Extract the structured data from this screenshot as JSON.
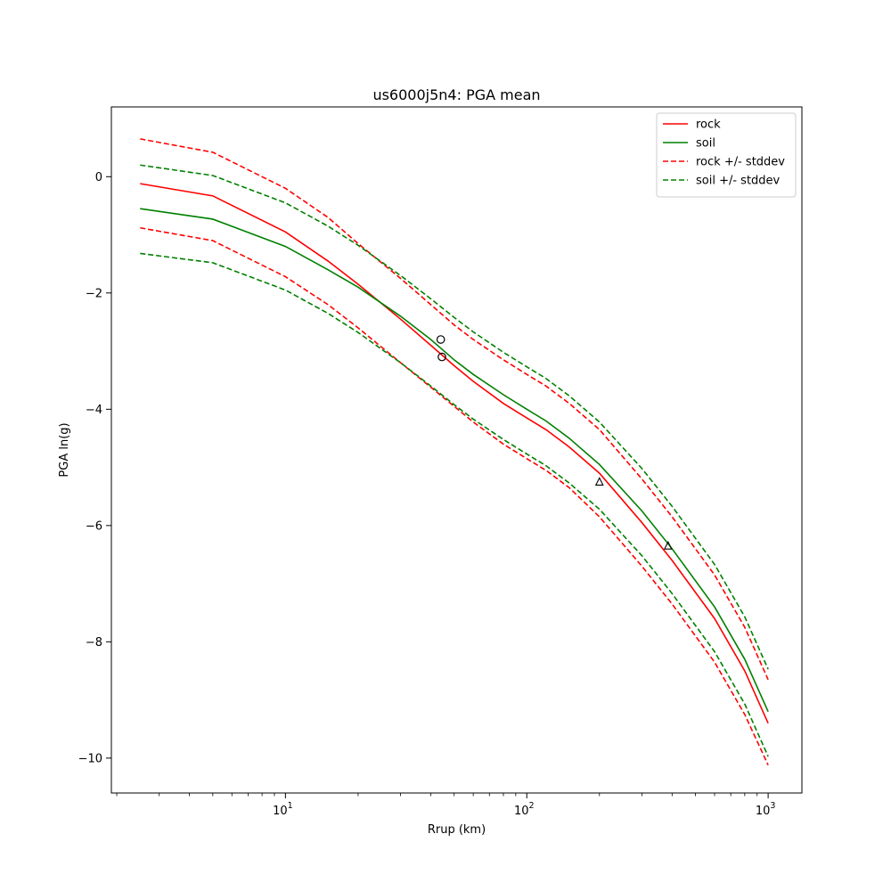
{
  "chart_data": {
    "type": "line",
    "title": "us6000j5n4: PGA mean",
    "xlabel": "Rrup (km)",
    "ylabel": "PGA ln(g)",
    "xscale": "log",
    "xlim": [
      1.9,
      1380
    ],
    "ylim": [
      -10.6,
      1.2
    ],
    "grid": false,
    "legend_position": "top-right",
    "x_ticks": [
      {
        "base": "10",
        "exp": "1",
        "value": 10
      },
      {
        "base": "10",
        "exp": "2",
        "value": 100
      },
      {
        "base": "10",
        "exp": "3",
        "value": 1000
      }
    ],
    "y_ticks": [
      {
        "label": "0",
        "value": 0
      },
      {
        "label": "−2",
        "value": -2
      },
      {
        "label": "−4",
        "value": -4
      },
      {
        "label": "−6",
        "value": -6
      },
      {
        "label": "−8",
        "value": -8
      },
      {
        "label": "−10",
        "value": -10
      }
    ],
    "x": [
      2.5,
      5,
      10,
      15,
      20,
      30,
      40,
      50,
      60,
      80,
      100,
      120,
      150,
      200,
      300,
      400,
      600,
      800,
      1000
    ],
    "series": [
      {
        "name": "rock",
        "color": "#ff0000",
        "style": "solid",
        "values": [
          -0.12,
          -0.33,
          -0.95,
          -1.45,
          -1.85,
          -2.45,
          -2.9,
          -3.25,
          -3.52,
          -3.9,
          -4.15,
          -4.35,
          -4.65,
          -5.1,
          -5.95,
          -6.6,
          -7.6,
          -8.5,
          -9.4
        ]
      },
      {
        "name": "soil",
        "color": "#008000",
        "style": "solid",
        "values": [
          -0.55,
          -0.73,
          -1.2,
          -1.6,
          -1.9,
          -2.4,
          -2.8,
          -3.15,
          -3.4,
          -3.75,
          -4.0,
          -4.2,
          -4.5,
          -4.95,
          -5.75,
          -6.4,
          -7.4,
          -8.3,
          -9.2
        ]
      },
      {
        "name": "rock +/- stddev",
        "color": "#ff0000",
        "style": "dashed",
        "values": [
          0.65,
          0.42,
          -0.2,
          -0.7,
          -1.15,
          -1.75,
          -2.2,
          -2.55,
          -2.8,
          -3.15,
          -3.4,
          -3.6,
          -3.9,
          -4.35,
          -5.2,
          -5.85,
          -6.85,
          -7.75,
          -8.65
        ]
      },
      {
        "name": "",
        "color": "#ff0000",
        "style": "dashed",
        "values": [
          -0.88,
          -1.1,
          -1.72,
          -2.2,
          -2.6,
          -3.2,
          -3.62,
          -3.95,
          -4.22,
          -4.6,
          -4.85,
          -5.05,
          -5.35,
          -5.85,
          -6.7,
          -7.35,
          -8.35,
          -9.25,
          -10.12
        ]
      },
      {
        "name": "soil +/- stddev",
        "color": "#008000",
        "style": "dashed",
        "values": [
          0.2,
          0.02,
          -0.45,
          -0.85,
          -1.18,
          -1.7,
          -2.1,
          -2.42,
          -2.67,
          -3.02,
          -3.27,
          -3.47,
          -3.77,
          -4.22,
          -5.02,
          -5.67,
          -6.67,
          -7.57,
          -8.47
        ]
      },
      {
        "name": "",
        "color": "#008000",
        "style": "dashed",
        "values": [
          -1.32,
          -1.48,
          -1.95,
          -2.35,
          -2.68,
          -3.2,
          -3.6,
          -3.92,
          -4.17,
          -4.52,
          -4.77,
          -4.97,
          -5.27,
          -5.72,
          -6.52,
          -7.17,
          -8.17,
          -9.07,
          -9.97
        ]
      }
    ],
    "observations": [
      {
        "marker": "circle",
        "x": 44,
        "y": -2.8
      },
      {
        "marker": "circle",
        "x": 44.5,
        "y": -3.1
      },
      {
        "marker": "triangle",
        "x": 200,
        "y": -5.25
      },
      {
        "marker": "triangle",
        "x": 385,
        "y": -6.35
      }
    ],
    "legend": [
      {
        "label": "rock",
        "color": "#ff0000",
        "style": "solid"
      },
      {
        "label": "soil",
        "color": "#008000",
        "style": "solid"
      },
      {
        "label": "rock +/- stddev",
        "color": "#ff0000",
        "style": "dashed"
      },
      {
        "label": "soil +/- stddev",
        "color": "#008000",
        "style": "dashed"
      }
    ]
  }
}
